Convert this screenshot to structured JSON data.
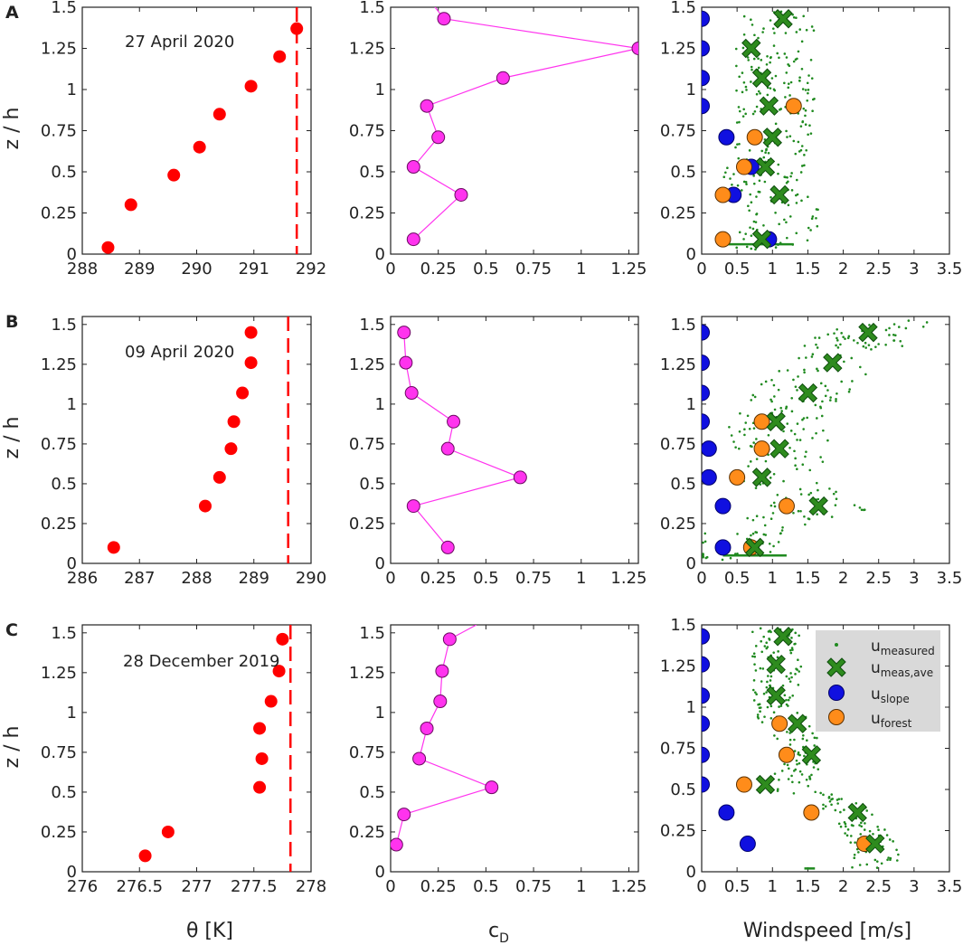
{
  "colors": {
    "theta": "#ff0000",
    "cd": "#ff33ee",
    "cd_line": "#ff33ee",
    "measured": "#1f8a1f",
    "meas_ave": "#2e8b1e",
    "slope": "#1010e0",
    "forest": "#ff8c1a",
    "legend_bg": "#d9d9d9"
  },
  "axis_titles": {
    "ylabel": "z / h",
    "xlabel_theta": "θ [K]",
    "xlabel_cd_main": "c",
    "xlabel_cd_sub": "D",
    "xlabel_wind": "Windspeed [m/s]"
  },
  "legend": {
    "measured_main": "u",
    "measured_sub": "measured",
    "meas_ave_main": "u",
    "meas_ave_sub": "meas,ave",
    "slope_main": "u",
    "slope_sub": "slope",
    "forest_main": "u",
    "forest_sub": "forest"
  },
  "rows": [
    {
      "letter": "A",
      "date": "27 April 2020"
    },
    {
      "letter": "B",
      "date": "09 April 2020"
    },
    {
      "letter": "C",
      "date": "28 December 2019"
    }
  ],
  "chart_data": [
    {
      "type": "scatter",
      "row": 0,
      "panel": "theta",
      "xlim": [
        288,
        292
      ],
      "ylim": [
        0,
        1.5
      ],
      "xticks": [
        "288",
        "289",
        "290",
        "291",
        "292"
      ],
      "yticks": [
        "0",
        "0.25",
        "0.5",
        "0.75",
        "1",
        "1.25",
        "1.5"
      ],
      "points": [
        [
          288.45,
          0.04
        ],
        [
          288.85,
          0.3
        ],
        [
          289.6,
          0.48
        ],
        [
          290.05,
          0.65
        ],
        [
          290.4,
          0.85
        ],
        [
          290.95,
          1.02
        ],
        [
          291.45,
          1.2
        ],
        [
          291.75,
          1.37
        ]
      ],
      "vline": 291.75
    },
    {
      "type": "line",
      "row": 0,
      "panel": "cd",
      "xlim": [
        0,
        1.3
      ],
      "ylim": [
        0,
        1.5
      ],
      "xticks": [
        "0",
        "0.25",
        "0.5",
        "0.75",
        "1",
        "1.25"
      ],
      "yticks": [
        "0",
        "0.25",
        "0.5",
        "0.75",
        "1",
        "1.25",
        "1.5"
      ],
      "points": [
        [
          0.12,
          0.09
        ],
        [
          0.37,
          0.36
        ],
        [
          0.12,
          0.53
        ],
        [
          0.25,
          0.71
        ],
        [
          0.19,
          0.9
        ],
        [
          0.59,
          1.07
        ],
        [
          1.3,
          1.25
        ],
        [
          0.28,
          1.43
        ]
      ],
      "line_extend": [
        0.2,
        1.55
      ]
    },
    {
      "type": "scatter",
      "row": 0,
      "panel": "wind",
      "xlim": [
        0,
        3.5
      ],
      "ylim": [
        0,
        1.5
      ],
      "xticks": [
        "0",
        "0.5",
        "1",
        "1.5",
        "2",
        "2.5",
        "3",
        "3.5"
      ],
      "yticks": [
        "0",
        "0.25",
        "0.5",
        "0.75",
        "1",
        "1.25",
        "1.5"
      ],
      "measured_trend": [
        [
          0.95,
          0.05
        ],
        [
          1.3,
          0.25
        ],
        [
          0.9,
          0.45
        ],
        [
          1.1,
          0.7
        ],
        [
          1.1,
          0.95
        ],
        [
          1.05,
          1.2
        ],
        [
          1.2,
          1.5
        ]
      ],
      "measured_spread": 0.55,
      "meas_ave": [
        [
          0.85,
          0.09
        ],
        [
          1.1,
          0.36
        ],
        [
          0.9,
          0.53
        ],
        [
          1.0,
          0.71
        ],
        [
          0.95,
          0.9
        ],
        [
          0.85,
          1.07
        ],
        [
          0.7,
          1.25
        ],
        [
          1.15,
          1.43
        ]
      ],
      "slope": [
        [
          0.95,
          0.09
        ],
        [
          0.45,
          0.36
        ],
        [
          0.7,
          0.53
        ],
        [
          0.35,
          0.71
        ],
        [
          0.0,
          0.9
        ],
        [
          0.0,
          1.07
        ],
        [
          0.0,
          1.25
        ],
        [
          0.0,
          1.43
        ]
      ],
      "forest": [
        [
          0.3,
          0.09
        ],
        [
          0.3,
          0.36
        ],
        [
          0.6,
          0.53
        ],
        [
          0.75,
          0.71
        ],
        [
          1.3,
          0.9
        ]
      ],
      "hline": [
        0.35,
        1.3,
        0.06
      ]
    },
    {
      "type": "scatter",
      "row": 1,
      "panel": "theta",
      "xlim": [
        286,
        290
      ],
      "ylim": [
        0,
        1.55
      ],
      "xticks": [
        "286",
        "287",
        "288",
        "289",
        "290"
      ],
      "yticks": [
        "0",
        "0.25",
        "0.5",
        "0.75",
        "1",
        "1.25",
        "1.5"
      ],
      "points": [
        [
          286.55,
          0.1
        ],
        [
          288.15,
          0.36
        ],
        [
          288.4,
          0.54
        ],
        [
          288.6,
          0.72
        ],
        [
          288.65,
          0.89
        ],
        [
          288.8,
          1.07
        ],
        [
          288.95,
          1.26
        ],
        [
          288.95,
          1.45
        ]
      ],
      "vline": 289.6
    },
    {
      "type": "line",
      "row": 1,
      "panel": "cd",
      "xlim": [
        0,
        1.3
      ],
      "ylim": [
        0,
        1.55
      ],
      "xticks": [
        "0",
        "0.25",
        "0.5",
        "0.75",
        "1",
        "1.25"
      ],
      "yticks": [
        "0",
        "0.25",
        "0.5",
        "0.75",
        "1",
        "1.25",
        "1.5"
      ],
      "points": [
        [
          0.3,
          0.1
        ],
        [
          0.12,
          0.36
        ],
        [
          0.68,
          0.54
        ],
        [
          0.3,
          0.72
        ],
        [
          0.33,
          0.89
        ],
        [
          0.11,
          1.07
        ],
        [
          0.08,
          1.26
        ],
        [
          0.07,
          1.45
        ]
      ]
    },
    {
      "type": "scatter",
      "row": 1,
      "panel": "wind",
      "xlim": [
        0,
        3.5
      ],
      "ylim": [
        0,
        1.55
      ],
      "xticks": [
        "0",
        "0.5",
        "1",
        "1.5",
        "2",
        "2.5",
        "3",
        "3.5"
      ],
      "yticks": [
        "0",
        "0.25",
        "0.5",
        "0.75",
        "1",
        "1.25",
        "1.5"
      ],
      "measured_trend": [
        [
          0.4,
          0.05
        ],
        [
          0.8,
          0.2
        ],
        [
          1.8,
          0.35
        ],
        [
          1.2,
          0.5
        ],
        [
          1.2,
          0.7
        ],
        [
          1.1,
          0.9
        ],
        [
          1.5,
          1.07
        ],
        [
          1.9,
          1.26
        ],
        [
          2.6,
          1.5
        ]
      ],
      "measured_spread": 0.7,
      "meas_ave": [
        [
          0.75,
          0.1
        ],
        [
          1.65,
          0.36
        ],
        [
          0.85,
          0.54
        ],
        [
          1.1,
          0.72
        ],
        [
          1.05,
          0.89
        ],
        [
          1.5,
          1.07
        ],
        [
          1.85,
          1.26
        ],
        [
          2.35,
          1.45
        ]
      ],
      "slope": [
        [
          0.3,
          0.1
        ],
        [
          0.3,
          0.36
        ],
        [
          0.1,
          0.54
        ],
        [
          0.1,
          0.72
        ],
        [
          0.0,
          0.89
        ],
        [
          0.0,
          1.07
        ],
        [
          0.0,
          1.26
        ],
        [
          0.0,
          1.45
        ]
      ],
      "forest": [
        [
          0.7,
          0.1
        ],
        [
          1.2,
          0.36
        ],
        [
          0.5,
          0.54
        ],
        [
          0.85,
          0.72
        ],
        [
          0.85,
          0.89
        ]
      ],
      "hline": [
        0.3,
        1.2,
        0.05
      ]
    },
    {
      "type": "scatter",
      "row": 2,
      "panel": "theta",
      "xlim": [
        276,
        278
      ],
      "ylim": [
        0,
        1.55
      ],
      "xticks": [
        "276",
        "276.5",
        "277",
        "277.5",
        "278"
      ],
      "yticks": [
        "0",
        "0.25",
        "0.5",
        "0.75",
        "1",
        "1.25",
        "1.5"
      ],
      "points": [
        [
          276.55,
          0.1
        ],
        [
          276.75,
          0.25
        ],
        [
          277.55,
          0.53
        ],
        [
          277.57,
          0.71
        ],
        [
          277.55,
          0.9
        ],
        [
          277.65,
          1.07
        ],
        [
          277.72,
          1.26
        ],
        [
          277.75,
          1.46
        ]
      ],
      "vline": 277.82
    },
    {
      "type": "line",
      "row": 2,
      "panel": "cd",
      "xlim": [
        0,
        1.3
      ],
      "ylim": [
        0,
        1.55
      ],
      "xticks": [
        "0",
        "0.25",
        "0.5",
        "0.75",
        "1",
        "1.25"
      ],
      "yticks": [
        "0",
        "0.25",
        "0.5",
        "0.75",
        "1",
        "1.25",
        "1.5"
      ],
      "points": [
        [
          0.03,
          0.17
        ],
        [
          0.07,
          0.36
        ],
        [
          0.53,
          0.53
        ],
        [
          0.15,
          0.71
        ],
        [
          0.19,
          0.9
        ],
        [
          0.26,
          1.07
        ],
        [
          0.27,
          1.26
        ],
        [
          0.31,
          1.46
        ]
      ],
      "line_extend": [
        0.45,
        1.55
      ]
    },
    {
      "type": "scatter",
      "row": 2,
      "panel": "wind",
      "xlim": [
        0,
        3.5
      ],
      "ylim": [
        0,
        1.5
      ],
      "xticks": [
        "0",
        "0.5",
        "1",
        "1.5",
        "2",
        "2.5",
        "3",
        "3.5"
      ],
      "yticks": [
        "0",
        "0.25",
        "0.5",
        "0.75",
        "1",
        "1.25",
        "1.5"
      ],
      "measured_trend": [
        [
          2.5,
          0.17
        ],
        [
          2.2,
          0.36
        ],
        [
          1.2,
          0.53
        ],
        [
          1.6,
          0.71
        ],
        [
          1.2,
          0.9
        ],
        [
          1.1,
          1.07
        ],
        [
          1.1,
          1.26
        ],
        [
          1.1,
          1.46
        ]
      ],
      "measured_spread": 0.35,
      "meas_ave": [
        [
          2.45,
          0.17
        ],
        [
          2.2,
          0.36
        ],
        [
          0.9,
          0.53
        ],
        [
          1.55,
          0.71
        ],
        [
          1.35,
          0.9
        ],
        [
          1.05,
          1.07
        ],
        [
          1.05,
          1.26
        ],
        [
          1.15,
          1.43
        ]
      ],
      "slope": [
        [
          0.65,
          0.17
        ],
        [
          0.35,
          0.36
        ],
        [
          0.0,
          0.53
        ],
        [
          0.0,
          0.71
        ],
        [
          0.0,
          0.9
        ],
        [
          0.0,
          1.07
        ],
        [
          0.0,
          1.26
        ],
        [
          0.0,
          1.43
        ]
      ],
      "forest": [
        [
          2.3,
          0.17
        ],
        [
          1.55,
          0.36
        ],
        [
          0.6,
          0.53
        ],
        [
          1.2,
          0.71
        ],
        [
          1.1,
          0.9
        ]
      ],
      "hline": [
        1.45,
        1.6,
        0.02
      ],
      "legend": true
    }
  ]
}
